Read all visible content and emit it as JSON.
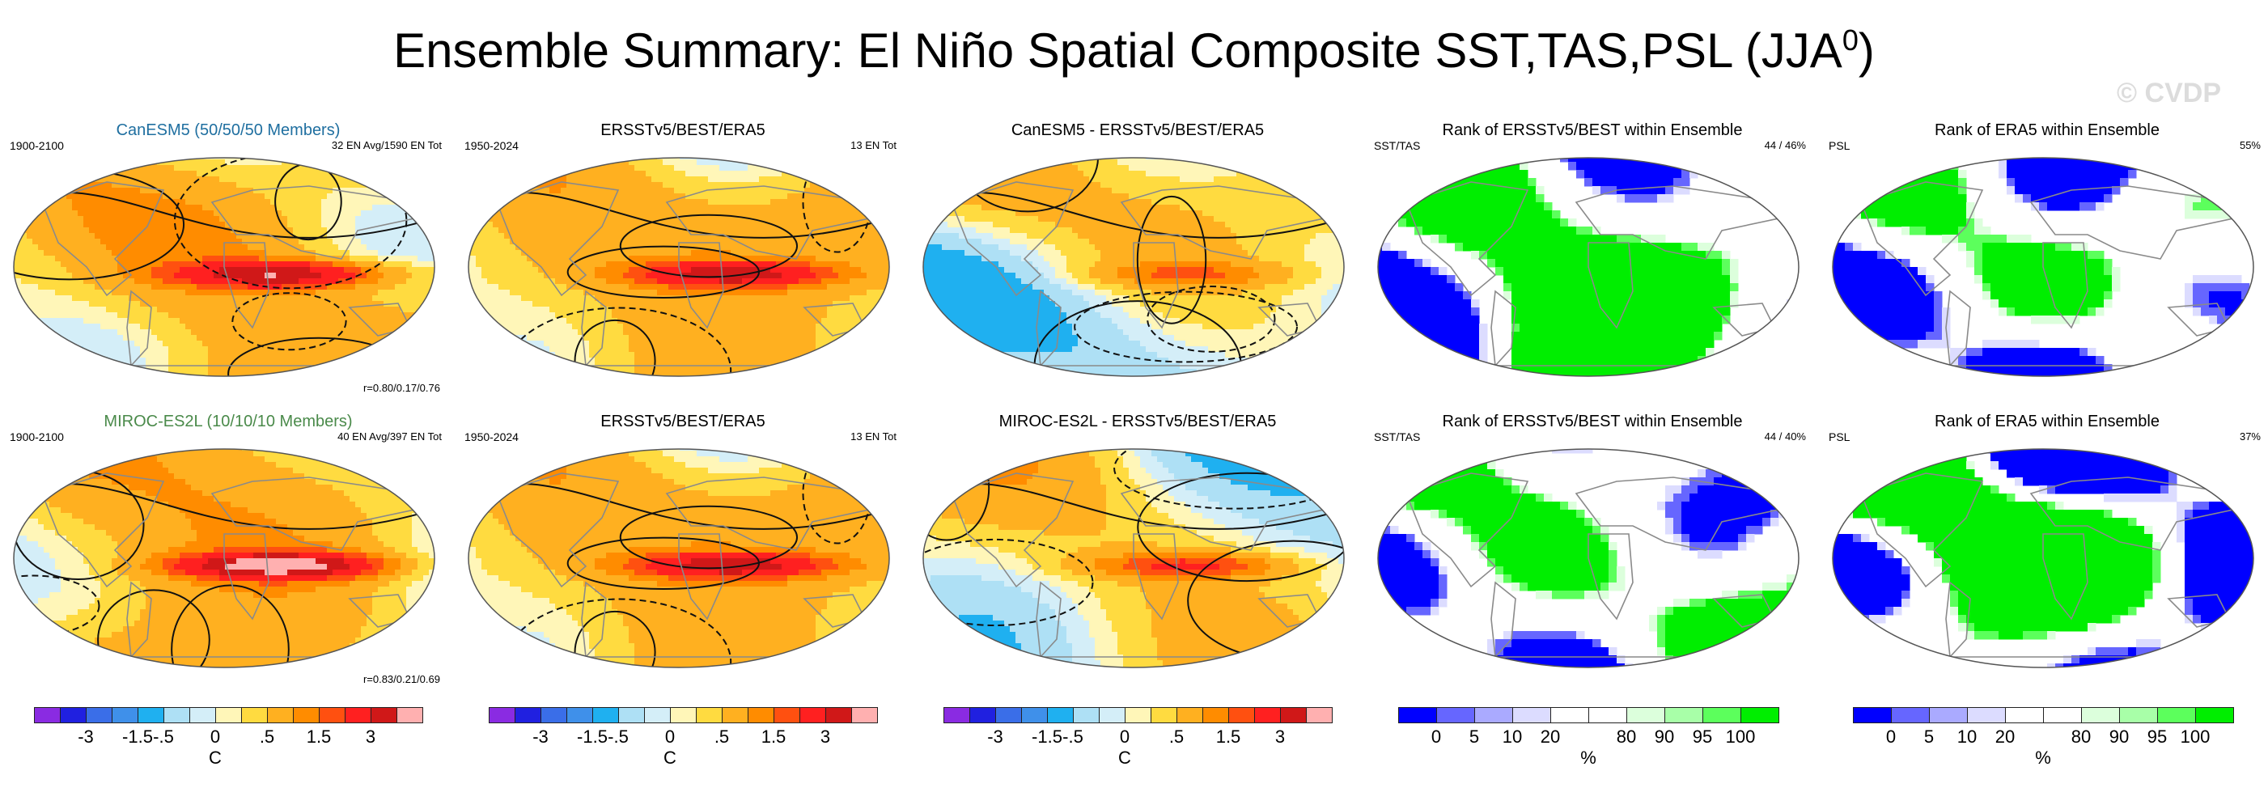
{
  "title": {
    "main": "Ensemble Summary: El Niño Spatial Composite SST,TAS,PSL (JJA",
    "sup": "0",
    "close": ")"
  },
  "watermark": "© CVDP",
  "panels": [
    {
      "row": 0,
      "col": 0,
      "kind": "comp",
      "title": "CanESM5 (50/50/50 Members)",
      "title_class": "model-a",
      "lt": "1900-2100",
      "rt": "32 EN Avg/1590 EN Tot",
      "rb": "r=0.80/0.17/0.76",
      "seed": 11,
      "enso": 1.0
    },
    {
      "row": 0,
      "col": 1,
      "kind": "comp",
      "title": "ERSSTv5/BEST/ERA5",
      "lt": "1950-2024",
      "rt": "13 EN Tot",
      "rb": "",
      "seed": 23,
      "enso": 0.9
    },
    {
      "row": 0,
      "col": 2,
      "kind": "diff",
      "title": "CanESM5 - ERSSTv5/BEST/ERA5",
      "lt": "",
      "rt": "",
      "rb": "",
      "seed": 37,
      "enso": 0.35
    },
    {
      "row": 0,
      "col": 3,
      "kind": "rank",
      "title": "Rank of ERSSTv5/BEST within Ensemble",
      "lt": "SST/TAS",
      "rt": "44 /  46%",
      "rb": "",
      "seed": 41,
      "bias": 0.1
    },
    {
      "row": 0,
      "col": 4,
      "kind": "rank",
      "title": "Rank of ERA5 within Ensemble",
      "lt": "PSL",
      "rt": "55%",
      "rb": "",
      "seed": 53,
      "bias": -0.1
    },
    {
      "row": 1,
      "col": 0,
      "kind": "comp",
      "title": "MIROC-ES2L (10/10/10 Members)",
      "title_class": "model-b",
      "lt": "1900-2100",
      "rt": "40 EN Avg/397 EN Tot",
      "rb": "r=0.83/0.21/0.69",
      "seed": 61,
      "enso": 1.25
    },
    {
      "row": 1,
      "col": 1,
      "kind": "comp",
      "title": "ERSSTv5/BEST/ERA5",
      "lt": "1950-2024",
      "rt": "13 EN Tot",
      "rb": "",
      "seed": 23,
      "enso": 0.9
    },
    {
      "row": 1,
      "col": 2,
      "kind": "diff",
      "title": "MIROC-ES2L - ERSSTv5/BEST/ERA5",
      "lt": "",
      "rt": "",
      "rb": "",
      "seed": 71,
      "enso": 0.55
    },
    {
      "row": 1,
      "col": 3,
      "kind": "rank",
      "title": "Rank of ERSSTv5/BEST within Ensemble",
      "lt": "SST/TAS",
      "rt": "44 /  40%",
      "rb": "",
      "seed": 83,
      "bias": 0.05
    },
    {
      "row": 1,
      "col": 4,
      "kind": "rank",
      "title": "Rank of ERA5 within Ensemble",
      "lt": "PSL",
      "rt": "37%",
      "rb": "",
      "seed": 97,
      "bias": 0.35
    }
  ],
  "legends": [
    {
      "type": "temp",
      "unit": "C",
      "ticks": [
        "-3",
        "-1.5",
        "-.5",
        "0",
        ".5",
        "1.5",
        "3"
      ]
    },
    {
      "type": "temp",
      "unit": "C",
      "ticks": [
        "-3",
        "-1.5",
        "-.5",
        "0",
        ".5",
        "1.5",
        "3"
      ]
    },
    {
      "type": "temp",
      "unit": "C",
      "ticks": [
        "-3",
        "-1.5",
        "-.5",
        "0",
        ".5",
        "1.5",
        "3"
      ]
    },
    {
      "type": "rank",
      "unit": "%",
      "ticks": [
        "0",
        "5",
        "10",
        "20",
        "80",
        "90",
        "95",
        "100"
      ]
    },
    {
      "type": "rank",
      "unit": "%",
      "ticks": [
        "0",
        "5",
        "10",
        "20",
        "80",
        "90",
        "95",
        "100"
      ]
    }
  ],
  "colors": {
    "temp_scale": [
      "#8a2be2",
      "#2020e0",
      "#3a6ee8",
      "#3f90ea",
      "#1fb0f0",
      "#aee0f5",
      "#d4eef8",
      "#fff6b8",
      "#ffdb40",
      "#ffb020",
      "#ff8c00",
      "#ff5010",
      "#ff2020",
      "#d01818",
      "#ffb0b0"
    ],
    "rank_scale": [
      "#0000ff",
      "#6666ff",
      "#aaaaff",
      "#dcdcff",
      "#ffffff",
      "#ffffff",
      "#dcffdc",
      "#a8ffa8",
      "#5cff5c",
      "#00ee00"
    ]
  },
  "chart_data": [
    {
      "type": "heatmap",
      "title": "CanESM5 (50/50/50 Members)",
      "period": "1900-2100",
      "annotation": "32 EN Avg/1590 EN Tot",
      "correlation": "r=0.80/0.17/0.76",
      "unit": "C",
      "colorbar_ticks": [
        -3,
        -1.5,
        -0.5,
        0,
        0.5,
        1.5,
        3
      ]
    },
    {
      "type": "heatmap",
      "title": "ERSSTv5/BEST/ERA5",
      "period": "1950-2024",
      "annotation": "13 EN Tot",
      "unit": "C"
    },
    {
      "type": "heatmap",
      "title": "CanESM5 - ERSSTv5/BEST/ERA5",
      "unit": "C"
    },
    {
      "type": "heatmap",
      "title": "Rank of ERSSTv5/BEST within Ensemble",
      "variables": "SST/TAS",
      "annotation": "44 /  46%",
      "unit": "%",
      "colorbar_ticks": [
        0,
        5,
        10,
        20,
        80,
        90,
        95,
        100
      ]
    },
    {
      "type": "heatmap",
      "title": "Rank of ERA5 within Ensemble",
      "variables": "PSL",
      "annotation": "55%",
      "unit": "%"
    },
    {
      "type": "heatmap",
      "title": "MIROC-ES2L (10/10/10 Members)",
      "period": "1900-2100",
      "annotation": "40 EN Avg/397 EN Tot",
      "correlation": "r=0.83/0.21/0.69",
      "unit": "C"
    },
    {
      "type": "heatmap",
      "title": "ERSSTv5/BEST/ERA5",
      "period": "1950-2024",
      "annotation": "13 EN Tot",
      "unit": "C"
    },
    {
      "type": "heatmap",
      "title": "MIROC-ES2L - ERSSTv5/BEST/ERA5",
      "unit": "C"
    },
    {
      "type": "heatmap",
      "title": "Rank of ERSSTv5/BEST within Ensemble",
      "variables": "SST/TAS",
      "annotation": "44 /  40%",
      "unit": "%"
    },
    {
      "type": "heatmap",
      "title": "Rank of ERA5 within Ensemble",
      "variables": "PSL",
      "annotation": "37%",
      "unit": "%"
    }
  ]
}
